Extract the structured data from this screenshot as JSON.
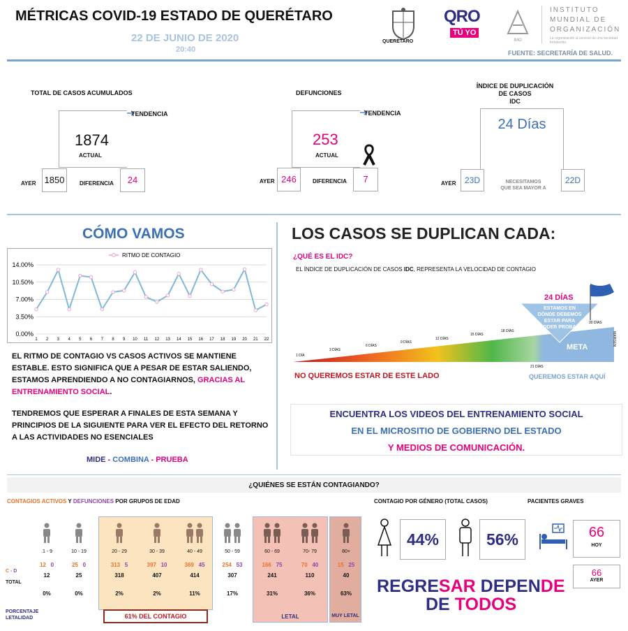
{
  "header": {
    "title": "MÉTRICAS COVID-19 ESTADO DE QUERÉTARO",
    "date": "22 DE JUNIO DE 2020",
    "time": "20:40",
    "seal_text": "QUERÉTARO",
    "qro_logo": "QRO",
    "tuyo_logo": "TÚ YO",
    "imo_name_1": "INSTITUTO",
    "imo_name_2": "MUNDIAL DE",
    "imo_name_3": "ORGANIZACIÓN",
    "imo_sub": "La organización al servicio de una sociedad fortalecida",
    "imo_mark": "IMO",
    "source": "FUENTE: SECRETARÍA DE SALUD."
  },
  "cases": {
    "title": "TOTAL DE CASOS ACUMULADOS",
    "trend_label": "TENDENCIA",
    "current": "1874",
    "current_label": "ACTUAL",
    "yesterday_label": "AYER",
    "yesterday": "1850",
    "diff_label": "DIFERENCIA",
    "diff": "24"
  },
  "deaths": {
    "title": "DEFUNCIONES",
    "trend_label": "TENDENCIA",
    "current": "253",
    "current_label": "ACTUAL",
    "yesterday_label": "AYER",
    "yesterday": "246",
    "diff_label": "DIFERENCIA",
    "diff": "7"
  },
  "idc": {
    "title_1": "ÍNDICE DE DUPLICACIÓN",
    "title_2": "DE CASOS",
    "title_3": "IDC",
    "current": "24 Días",
    "yesterday_label": "AYER",
    "yesterday": "23D",
    "note_1": "NECESITAMOS",
    "note_2": "QUE SEA MAYOR A",
    "target": "22D"
  },
  "como_vamos": {
    "title": "CÓMO VAMOS",
    "para1_a": "EL RITMO DE CONTAGIO VS CASOS ACTIVOS SE MANTIENE ESTABLE. ESTO SIGNIFICA QUE A PESAR DE ESTAR SALIENDO, ESTAMOS APRENDIENDO A NO CONTAGIARNOS, ",
    "para1_b": "GRACIAS AL ENTRENAMIENTO SOCIAL",
    "para1_c": ".",
    "para2": "TENDREMOS QUE ESPERAR A FINALES DE ESTA SEMANA Y PRINCIPIOS DE LA SIGUIENTE PARA VER EL EFECTO DEL RETORNO A LAS ACTIVIDADES NO ESENCIALES",
    "motto_1": "MIDE",
    "motto_sep1": " - ",
    "motto_2": "COMBINA",
    "motto_sep2": " - ",
    "motto_3": "PRUEBA"
  },
  "duplican": {
    "title": "LOS CASOS SE DUPLICAN CADA:",
    "question": "¿QUÉ ES EL IDC?",
    "explain_a": "EL ÍNDICE DE DUPLICACIÓN DE CASOS ",
    "explain_b": "IDC",
    "explain_c": ", REPRESENTA LA VELOCIDAD DE CONTAGIO",
    "days": [
      "1 DÍA",
      "3 DÍAS",
      "6 DÍAS",
      "9 DÍAS",
      "12 DÍAS",
      "15 DÍAS",
      "18 DÍAS",
      "21 DÍAS",
      "30 DÍAS"
    ],
    "meta_label": "META",
    "margen": "MARGEN",
    "badge_title": "24 DÍAS",
    "badge_text": "ESTAMOS EN DÓNDE DEBEMOS ESTAR PARA PODER PROBAR",
    "no_queremos": "NO QUEREMOS ESTAR DE ESTE LADO",
    "queremos": "QUEREMOS ESTAR AQUÍ",
    "videos_1": "ENCUENTRA LOS VIDEOS DEL ENTRENAMIENTO SOCIAL",
    "videos_2": "EN EL MICROSITIO DE GOBIERNO DEL ESTADO",
    "videos_3": "Y MEDIOS DE COMUNICACIÓN."
  },
  "quienes": {
    "title": "¿QUIÉNES SE ESTÁN CONTAGIANDO?",
    "subtitle_a": "CONTAGIOS ACTIVOS",
    "subtitle_b": " Y ",
    "subtitle_c": "DEFUNCIONES",
    "subtitle_d": " POR GRUPOS DE EDAD",
    "row_cd": "C - D",
    "row_total": "TOTAL",
    "row_pct": "PORCENTAJE LETALIDAD",
    "groups": [
      {
        "age": ".1 - 9",
        "c": "12",
        "d": "0",
        "total": "12",
        "pct": "0%"
      },
      {
        "age": "10 - 19",
        "c": "25",
        "d": "0",
        "total": "25",
        "pct": "0%"
      },
      {
        "age": "20 - 29",
        "c": "313",
        "d": "5",
        "total": "318",
        "pct": "2%"
      },
      {
        "age": "30 - 39",
        "c": "397",
        "d": "10",
        "total": "407",
        "pct": "2%"
      },
      {
        "age": "40 - 49",
        "c": "369",
        "d": "45",
        "total": "414",
        "pct": "11%"
      },
      {
        "age": "50 - 59",
        "c": "254",
        "d": "53",
        "total": "307",
        "pct": "17%"
      },
      {
        "age": "60 - 69",
        "c": "166",
        "d": "75",
        "total": "241",
        "pct": "31%"
      },
      {
        "age": "70- 79",
        "c": "70",
        "d": "40",
        "total": "110",
        "pct": "36%"
      },
      {
        "age": "80+",
        "c": "15",
        "d": "25",
        "total": "40",
        "pct": "63%"
      }
    ],
    "contagio_pct": "61%",
    "contagio_label": "DEL CONTAGIO",
    "letal": "LETAL",
    "muy_letal": "MUY LETAL",
    "gender_title": "CONTAGIO POR GÉNERO (TOTAL CASOS)",
    "female_pct": "44%",
    "male_pct": "56%",
    "graves_title": "PACIENTES GRAVES",
    "graves_hoy": "66",
    "hoy_label": "HOY",
    "graves_ayer": "66",
    "ayer_label": "AYER",
    "slogan_1a": "REGRE",
    "slogan_1b": "SAR",
    "slogan_1c": " DEPEN",
    "slogan_1d": "DE",
    "slogan_2a": "DE ",
    "slogan_2b": "TODOS"
  },
  "colors": {
    "magenta": "#e6007e",
    "blue": "#3b6fb6",
    "navy": "#2d2e83",
    "orange": "#e8732a",
    "light_blue": "#7aa3cf",
    "chart_line": "#7fb8d8"
  },
  "chart_data": {
    "type": "line",
    "title": "",
    "legend": [
      "RITMO DE CONTAGIO"
    ],
    "legend_position": "top-center",
    "x": [
      1,
      2,
      3,
      4,
      5,
      6,
      7,
      8,
      9,
      10,
      11,
      12,
      13,
      14,
      15,
      16,
      17,
      18,
      19,
      20,
      21,
      22
    ],
    "series": [
      {
        "name": "RITMO DE CONTAGIO",
        "values": [
          5.0,
          8.5,
          13.0,
          5.0,
          11.8,
          11.5,
          5.0,
          8.5,
          8.8,
          12.5,
          7.5,
          6.5,
          7.8,
          12.2,
          7.7,
          13.0,
          10.1,
          8.6,
          9.0,
          13.1,
          4.8,
          6.0
        ]
      }
    ],
    "yticks": [
      "0.00%",
      "3.50%",
      "7.00%",
      "10.50%",
      "14.00%"
    ],
    "ylim": [
      0,
      14
    ],
    "grid": true
  }
}
